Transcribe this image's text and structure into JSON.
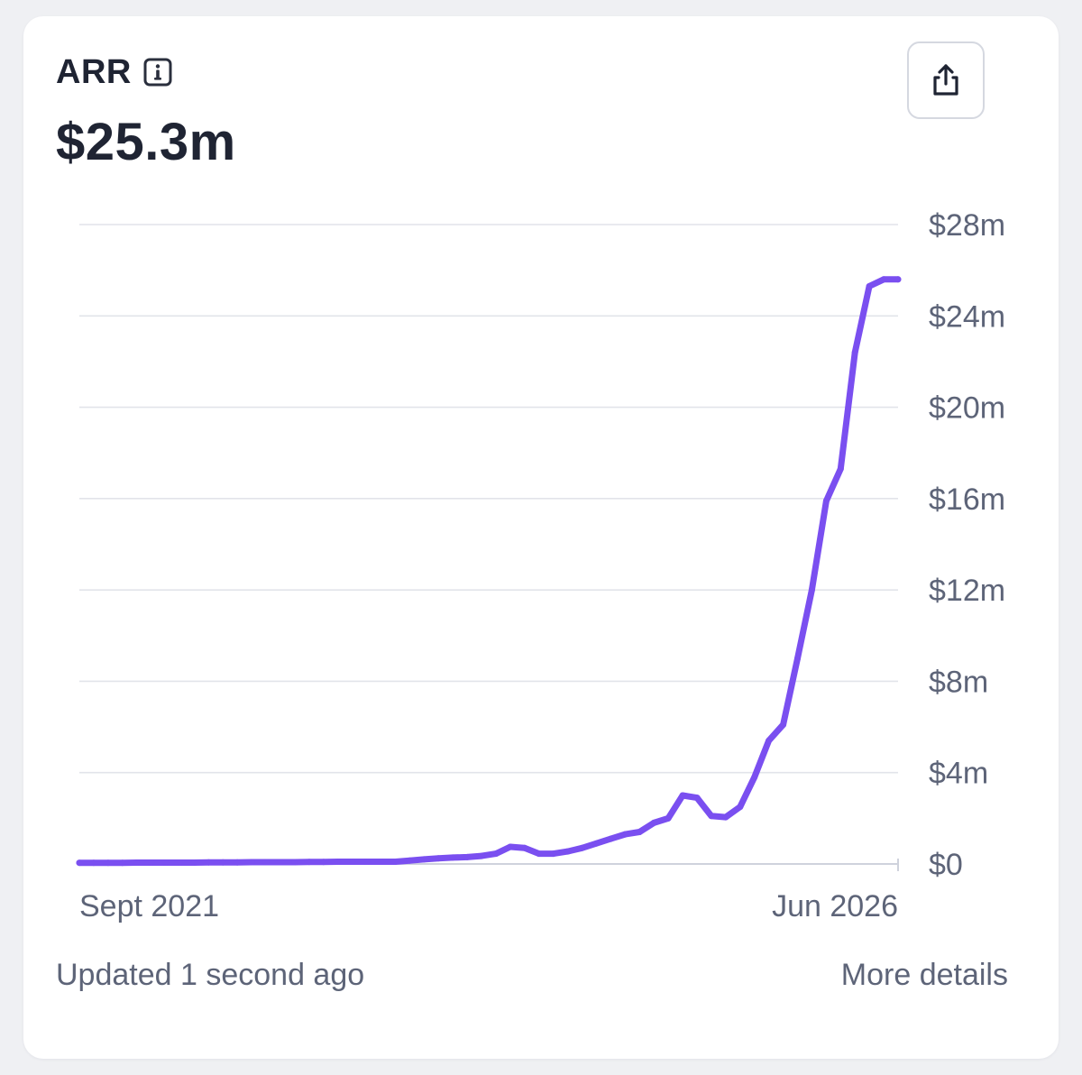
{
  "header": {
    "title": "ARR",
    "info_icon": "info-icon",
    "value": "$25.3m",
    "share_icon": "share-icon"
  },
  "chart_data": {
    "type": "line",
    "title": "ARR",
    "xlabel": "",
    "ylabel": "",
    "x_tick_labels": [
      "Sept 2021",
      "Jun 2026"
    ],
    "y_tick_labels": [
      "$0",
      "$4m",
      "$8m",
      "$12m",
      "$16m",
      "$20m",
      "$24m",
      "$28m"
    ],
    "ylim": [
      0,
      28
    ],
    "y_unit": "$m",
    "grid": true,
    "legend": "none",
    "series": [
      {
        "x": [
          "2021-09",
          "2021-10",
          "2021-11",
          "2021-12",
          "2022-01",
          "2022-02",
          "2022-03",
          "2022-04",
          "2022-05",
          "2022-06",
          "2022-07",
          "2022-08",
          "2022-09",
          "2022-10",
          "2022-11",
          "2022-12",
          "2023-01",
          "2023-02",
          "2023-03",
          "2023-04",
          "2023-05",
          "2023-06",
          "2023-07",
          "2023-08",
          "2023-09",
          "2023-10",
          "2023-11",
          "2023-12",
          "2024-01",
          "2024-02",
          "2024-03",
          "2024-04",
          "2024-05",
          "2024-06",
          "2024-07",
          "2024-08",
          "2024-09",
          "2024-10",
          "2024-11",
          "2024-12",
          "2025-01",
          "2025-02",
          "2025-03",
          "2025-04",
          "2025-05",
          "2025-06",
          "2025-07",
          "2025-08",
          "2025-09",
          "2025-10",
          "2025-11",
          "2025-12",
          "2026-01",
          "2026-02",
          "2026-03",
          "2026-04",
          "2026-05",
          "2026-06"
        ],
        "values": [
          0.05,
          0.05,
          0.05,
          0.05,
          0.06,
          0.06,
          0.06,
          0.06,
          0.06,
          0.07,
          0.07,
          0.07,
          0.08,
          0.08,
          0.08,
          0.08,
          0.09,
          0.09,
          0.1,
          0.1,
          0.1,
          0.1,
          0.1,
          0.15,
          0.2,
          0.25,
          0.28,
          0.3,
          0.35,
          0.45,
          0.75,
          0.7,
          0.45,
          0.45,
          0.55,
          0.7,
          0.9,
          1.1,
          1.3,
          1.4,
          1.8,
          2.0,
          3.0,
          2.9,
          2.1,
          2.05,
          2.5,
          3.8,
          5.4,
          6.1,
          9.0,
          12.0,
          15.9,
          17.3,
          22.4,
          25.3,
          25.6,
          25.6
        ],
        "color": "#7a4ff0"
      }
    ]
  },
  "footer": {
    "updated": "Updated 1 second ago",
    "more_details": "More details"
  }
}
